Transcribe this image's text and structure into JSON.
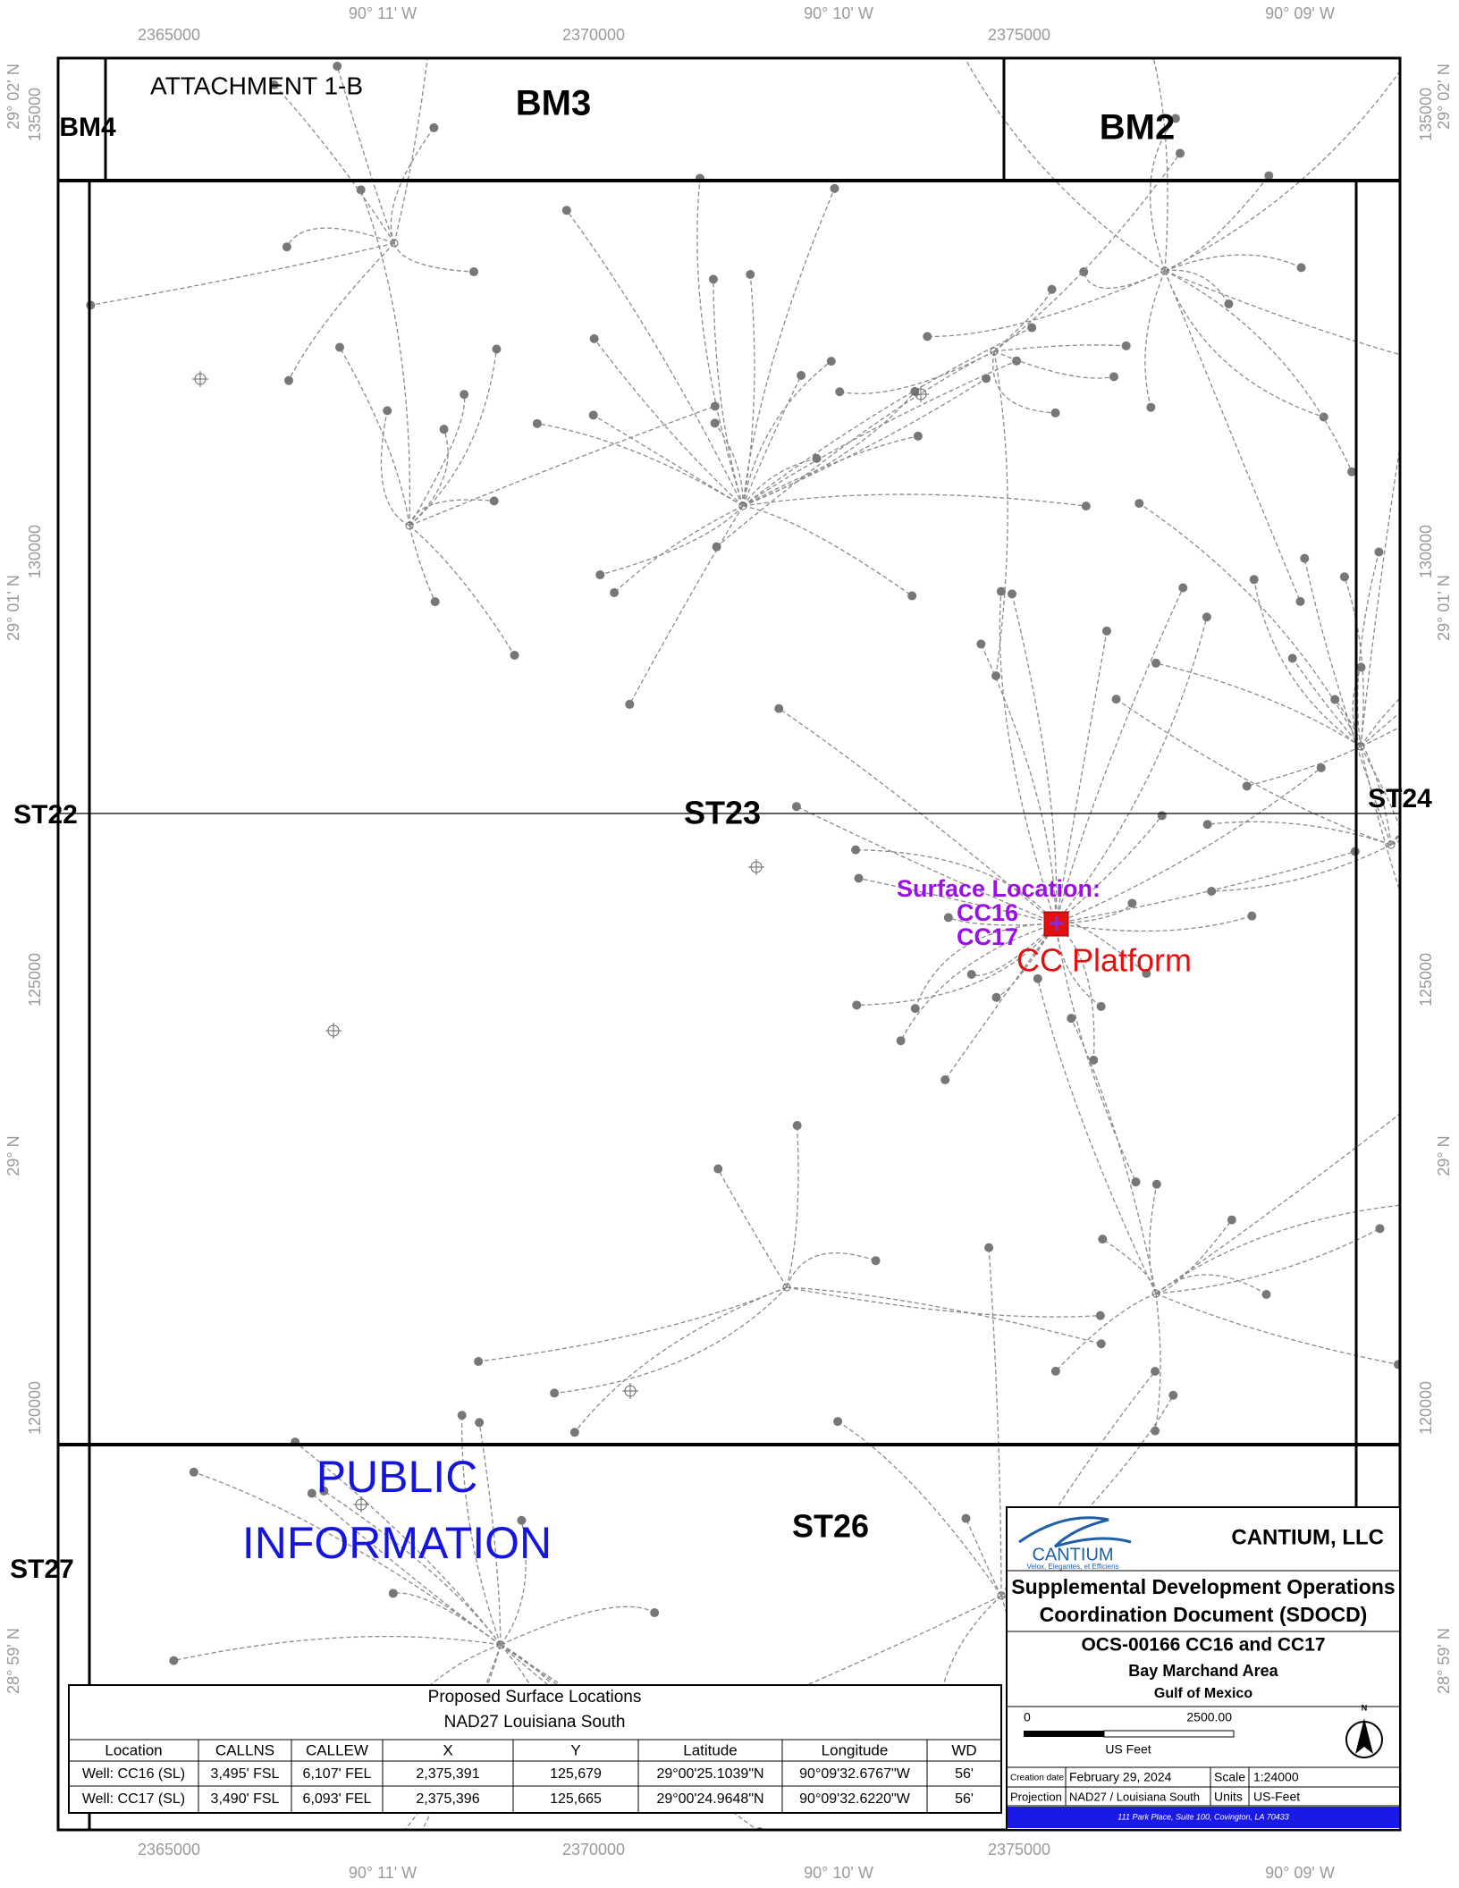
{
  "header": {
    "attachment": "ATTACHMENT 1-B"
  },
  "grid": {
    "eastings": [
      "2365000",
      "2370000",
      "2375000"
    ],
    "northings": [
      "135000",
      "130000",
      "125000",
      "120000"
    ],
    "longitudes": [
      "90° 11' W",
      "90° 10' W",
      "90° 09' W"
    ],
    "latitudes": [
      "29° 02' N",
      "29° 01' N",
      "29° N",
      "28° 59' N"
    ]
  },
  "blocks": {
    "bm4": "BM4",
    "bm3": "BM3",
    "bm2": "BM2",
    "st22": "ST22",
    "st23": "ST23",
    "st24": "ST24",
    "st26": "ST26",
    "st27": "ST27"
  },
  "watermark": [
    "PUBLIC",
    "INFORMATION"
  ],
  "surface_location": {
    "label": "Surface Location:",
    "wells": [
      "CC16",
      "CC17"
    ],
    "platform": "CC Platform"
  },
  "table": {
    "title": [
      "Proposed Surface Locations",
      "NAD27 Louisiana South"
    ],
    "columns": [
      "Location",
      "CALLNS",
      "CALLEW",
      "X",
      "Y",
      "Latitude",
      "Longitude",
      "WD"
    ],
    "rows": [
      [
        "Well: CC16 (SL)",
        "3,495' FSL",
        "6,107' FEL",
        "2,375,391",
        "125,679",
        "29°00'25.1039\"N",
        "90°09'32.6767\"W",
        "56'"
      ],
      [
        "Well: CC17 (SL)",
        "3,490' FSL",
        "6,093' FEL",
        "2,375,396",
        "125,665",
        "29°00'24.9648\"N",
        "90°09'32.6220\"W",
        "56'"
      ]
    ]
  },
  "title_block": {
    "company": "CANTIUM, LLC",
    "logo": "CANTIUM",
    "tagline": "Velox, Elegantes, et Efficiens",
    "title": [
      "Supplemental Development Operations",
      "Coordination Document (SDOCD)"
    ],
    "subtitle": [
      "OCS-00166  CC16 and CC17",
      "Bay Marchand Area",
      "Gulf of Mexico"
    ],
    "scale_bar": {
      "start": "0",
      "end": "2500.00",
      "units": "US Feet"
    },
    "north": "N",
    "creation_date_label": "Creation date",
    "creation_date": "February 29, 2024",
    "scale_label": "Scale",
    "scale": "1:24000",
    "projection_label": "Projection",
    "projection": "NAD27 / Louisiana South",
    "units_label": "Units",
    "units": "US-Feet",
    "address": "111 Park Place, Suite 100, Covington, LA 70433"
  }
}
